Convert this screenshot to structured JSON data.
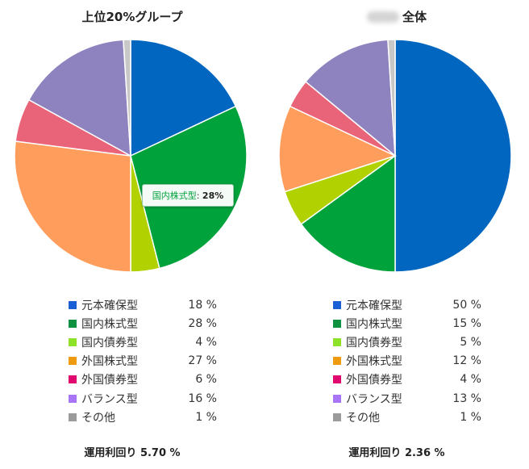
{
  "chart_data": [
    {
      "type": "pie",
      "title": "上位20%グループ",
      "categories": [
        "元本確保型",
        "国内株式型",
        "国内債券型",
        "外国株式型",
        "外国債券型",
        "バランス型",
        "その他"
      ],
      "values": [
        18,
        28,
        4,
        27,
        6,
        16,
        1
      ],
      "value_labels": [
        "18 %",
        "28 %",
        "4 %",
        "27 %",
        "6 %",
        "16 %",
        "1 %"
      ],
      "pie_colors": [
        "#0066bf",
        "#00a23c",
        "#b2d100",
        "#ff9d5c",
        "#e96478",
        "#8e82bf",
        "#c8c8c8"
      ],
      "legend_colors": [
        "#1a5fd6",
        "#0d9140",
        "#8ee32a",
        "#f09a10",
        "#e0076e",
        "#a775f5",
        "#9b9b9b"
      ],
      "footer": "運用利回り 5.70 %",
      "tooltip": {
        "category": "国内株式型",
        "value": "28%"
      }
    },
    {
      "type": "pie",
      "title": "全体",
      "categories": [
        "元本確保型",
        "国内株式型",
        "国内債券型",
        "外国株式型",
        "外国債券型",
        "バランス型",
        "その他"
      ],
      "values": [
        50,
        15,
        5,
        12,
        4,
        13,
        1
      ],
      "value_labels": [
        "50 %",
        "15 %",
        "5 %",
        "12 %",
        "4 %",
        "13 %",
        "1 %"
      ],
      "pie_colors": [
        "#0066bf",
        "#00a23c",
        "#b2d100",
        "#ff9d5c",
        "#e96478",
        "#8e82bf",
        "#c8c8c8"
      ],
      "legend_colors": [
        "#1a5fd6",
        "#0d9140",
        "#8ee32a",
        "#f09a10",
        "#e0076e",
        "#a775f5",
        "#9b9b9b"
      ],
      "footer": "運用利回り 2.36 %"
    }
  ]
}
